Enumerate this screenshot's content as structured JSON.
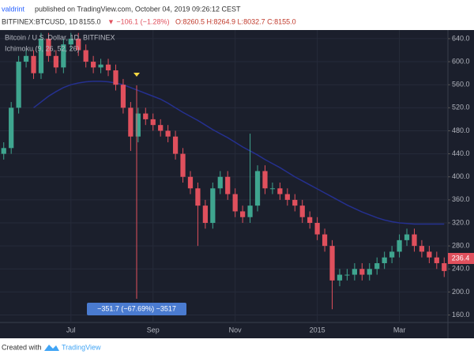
{
  "header": {
    "author": "valdrint",
    "published": "published on TradingView.com, October 04, 2019 09:26:12 CEST",
    "symbol": "BITFINEX:BTCUSD, 1D",
    "price": "8155.0",
    "change": "▼ −106.1 (−1.28%)",
    "ohlc": "O:8260.5 H:8264.9 L:8032.7 C:8155.0"
  },
  "footer": {
    "created": "Created with",
    "brand": "TradingView"
  },
  "chart_data": {
    "type": "candlestick",
    "title": "Bitcoin / U.S. Dollar, 1D, BITFINEX",
    "categories": [
      null,
      null,
      null,
      null,
      null,
      null,
      null,
      null,
      null,
      "Jul",
      null,
      null,
      null,
      null,
      null,
      null,
      null,
      null,
      null,
      null,
      "Sep",
      null,
      null,
      null,
      null,
      null,
      null,
      null,
      null,
      null,
      null,
      "Nov",
      null,
      null,
      null,
      null,
      null,
      null,
      null,
      null,
      null,
      null,
      "2015",
      null,
      null,
      null,
      null,
      null,
      null,
      null,
      null,
      null,
      null,
      "Mar",
      null,
      null,
      null,
      null,
      null,
      null
    ],
    "open": [
      440,
      450,
      520,
      600,
      610,
      580,
      640,
      610,
      590,
      630,
      640,
      620,
      600,
      590,
      595,
      585,
      560,
      520,
      470,
      510,
      500,
      490,
      480,
      470,
      440,
      400,
      380,
      350,
      320,
      380,
      400,
      370,
      340,
      330,
      350,
      410,
      380,
      380,
      370,
      360,
      350,
      330,
      320,
      300,
      280,
      220,
      230,
      230,
      240,
      230,
      240,
      250,
      260,
      270,
      290,
      300,
      280,
      270,
      260,
      250
    ],
    "high": [
      460,
      530,
      610,
      620,
      620,
      650,
      650,
      620,
      640,
      650,
      650,
      630,
      610,
      605,
      605,
      595,
      570,
      530,
      520,
      520,
      510,
      500,
      490,
      480,
      450,
      410,
      390,
      360,
      390,
      410,
      410,
      380,
      350,
      475,
      420,
      420,
      390,
      390,
      380,
      370,
      360,
      340,
      330,
      310,
      290,
      240,
      240,
      250,
      250,
      250,
      260,
      270,
      280,
      300,
      310,
      310,
      290,
      280,
      270,
      260
    ],
    "low": [
      430,
      440,
      510,
      590,
      570,
      570,
      600,
      580,
      580,
      620,
      610,
      590,
      580,
      580,
      575,
      550,
      510,
      445,
      460,
      490,
      480,
      470,
      460,
      430,
      390,
      370,
      280,
      310,
      310,
      370,
      360,
      330,
      320,
      320,
      340,
      370,
      370,
      360,
      350,
      340,
      320,
      310,
      290,
      270,
      170,
      210,
      220,
      220,
      220,
      220,
      230,
      240,
      250,
      260,
      280,
      270,
      260,
      250,
      240,
      226
    ],
    "close": [
      450,
      520,
      600,
      610,
      580,
      640,
      610,
      590,
      630,
      640,
      620,
      600,
      590,
      595,
      585,
      560,
      520,
      470,
      510,
      500,
      490,
      480,
      470,
      440,
      400,
      380,
      350,
      320,
      380,
      400,
      370,
      340,
      330,
      350,
      410,
      380,
      380,
      370,
      360,
      350,
      330,
      320,
      300,
      280,
      220,
      230,
      230,
      240,
      230,
      240,
      250,
      260,
      270,
      290,
      300,
      280,
      270,
      260,
      250,
      236.4
    ],
    "up_color": "#3fa58f",
    "down_color": "#e0505d",
    "overlay": {
      "name": "Ichimoku (9, 26, 52, 26)",
      "color": "#25308f",
      "values": [
        null,
        null,
        null,
        null,
        520,
        530,
        540,
        548,
        555,
        560,
        563,
        565,
        566,
        566,
        565,
        563,
        560,
        555,
        550,
        545,
        540,
        535,
        528,
        520,
        512,
        505,
        498,
        490,
        482,
        475,
        468,
        460,
        452,
        445,
        438,
        430,
        423,
        416,
        408,
        400,
        393,
        386,
        379,
        372,
        365,
        358,
        351,
        345,
        339,
        334,
        329,
        325,
        322,
        320,
        319,
        318,
        318,
        318,
        318,
        318
      ]
    },
    "annotation": "−351.7 (−67.69%) −3517",
    "ylim": [
      147,
      655
    ],
    "yticks": [
      {
        "value": 160,
        "label": "160.0"
      },
      {
        "value": 200,
        "label": "200.0"
      },
      {
        "value": 240,
        "label": "240.0"
      },
      {
        "value": 280,
        "label": "280.0"
      },
      {
        "value": 320,
        "label": "320.0"
      },
      {
        "value": 360,
        "label": "360.0"
      },
      {
        "value": 400,
        "label": "400.0"
      },
      {
        "value": 440,
        "label": "440.0"
      },
      {
        "value": 480,
        "label": "480.0"
      },
      {
        "value": 520,
        "label": "520.0"
      },
      {
        "value": 560,
        "label": "560.0"
      },
      {
        "value": 600,
        "label": "600.0"
      },
      {
        "value": 640,
        "label": "640.0"
      }
    ],
    "grid": true
  }
}
